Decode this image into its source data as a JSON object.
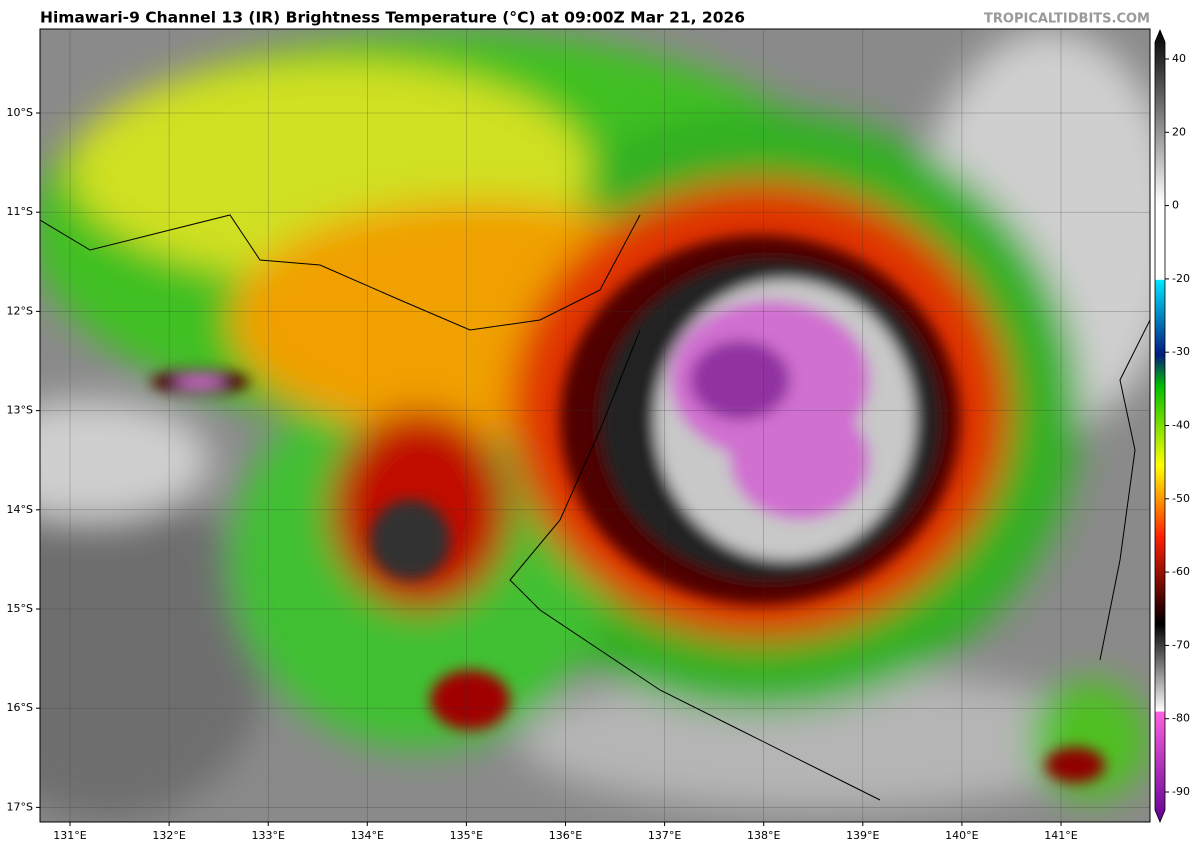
{
  "header": {
    "title": "Himawari-9 Channel 13 (IR) Brightness Temperature (°C) at 09:00Z Mar 21, 2026",
    "watermark": "TROPICALTIDBITS.COM"
  },
  "map": {
    "lat_labels": [
      "10°S",
      "11°S",
      "12°S",
      "13°S",
      "14°S",
      "15°S",
      "16°S",
      "17°S"
    ],
    "lon_labels": [
      "131°E",
      "132°E",
      "133°E",
      "134°E",
      "135°E",
      "136°E",
      "137°E",
      "138°E",
      "139°E",
      "140°E",
      "141°E"
    ]
  },
  "colorbar": {
    "ticks": [
      40,
      20,
      0,
      -20,
      -30,
      -40,
      -50,
      -60,
      -70,
      -80,
      -90
    ]
  }
}
